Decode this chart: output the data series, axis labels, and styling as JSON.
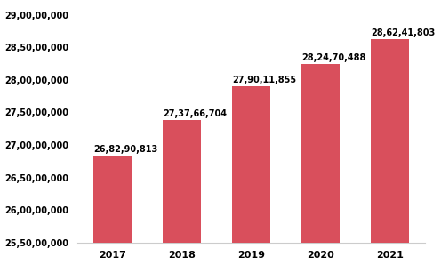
{
  "years": [
    "2017",
    "2018",
    "2019",
    "2020",
    "2021"
  ],
  "values": [
    268290813,
    273766704,
    279011855,
    282470488,
    286241803
  ],
  "bar_labels": [
    "26,82,90,813",
    "27,37,66,704",
    "27,90,11,855",
    "28,24,70,488",
    "28,62,41,803"
  ],
  "bar_color": "#d94f5c",
  "ylim_min": 255000000,
  "ylim_max": 291500000,
  "ytick_values": [
    255000000,
    260000000,
    265000000,
    270000000,
    275000000,
    280000000,
    285000000,
    290000000
  ],
  "ytick_labels": [
    "25,50,00,000",
    "26,00,00,000",
    "26,50,00,000",
    "27,00,00,000",
    "27,50,00,000",
    "28,00,00,000",
    "28,50,00,000",
    "29,00,00,000"
  ],
  "background_color": "#ffffff",
  "label_fontsize": 7.0,
  "tick_fontsize": 7.0,
  "xtick_fontsize": 8.0,
  "bar_width": 0.55
}
